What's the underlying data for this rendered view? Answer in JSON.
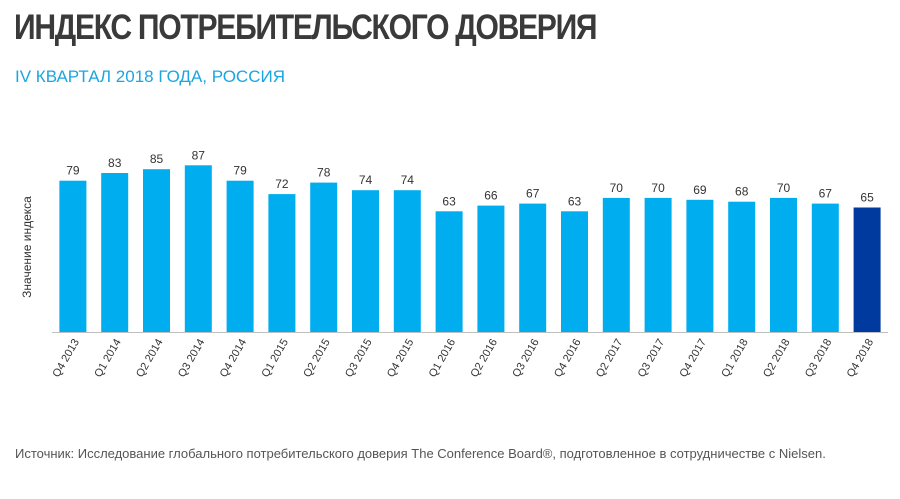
{
  "title": "ИНДЕКС ПОТРЕБИТЕЛЬСКОГО ДОВЕРИЯ",
  "subtitle": "IV КВАРТАЛ 2018 ГОДА, РОССИЯ",
  "source": "Источник: Исследование глобального потребительского доверия The Conference Board®, подготовленное в сотрудничестве с Nielsen.",
  "colors": {
    "bar": "#00aeef",
    "highlight": "#003a9e"
  },
  "chart_data": {
    "type": "bar",
    "title": "ИНДЕКС ПОТРЕБИТЕЛЬСКОГО ДОВЕРИЯ",
    "subtitle": "IV КВАРТАЛ 2018 ГОДА, РОССИЯ",
    "ylabel": "Значение индекса",
    "xlabel": "",
    "ylim": [
      0,
      95
    ],
    "grid": false,
    "categories": [
      "Q4 2013",
      "Q1 2014",
      "Q2 2014",
      "Q3 2014",
      "Q4 2014",
      "Q1 2015",
      "Q2 2015",
      "Q3 2015",
      "Q4 2015",
      "Q1 2016",
      "Q2 2016",
      "Q3 2016",
      "Q4 2016",
      "Q2 2017",
      "Q3 2017",
      "Q4 2017",
      "Q1 2018",
      "Q2 2018",
      "Q3 2018",
      "Q4 2018"
    ],
    "values": [
      79,
      83,
      85,
      87,
      79,
      72,
      78,
      74,
      74,
      63,
      66,
      67,
      63,
      70,
      70,
      69,
      68,
      70,
      67,
      65
    ],
    "highlighted_category": "Q4 2018"
  }
}
